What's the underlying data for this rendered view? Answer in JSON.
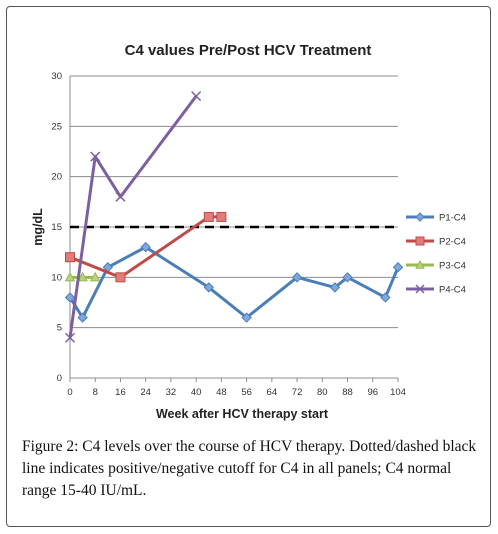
{
  "chart_data": {
    "type": "line",
    "title": "C4 values Pre/Post HCV Treatment",
    "xlabel": "Week after HCV therapy start",
    "ylabel": "mg/dL",
    "xlim": [
      0,
      104
    ],
    "ylim": [
      0,
      30
    ],
    "xticks": [
      0,
      8,
      16,
      24,
      32,
      40,
      48,
      56,
      64,
      72,
      80,
      88,
      96,
      104
    ],
    "yticks": [
      0,
      5,
      10,
      15,
      20,
      25,
      30
    ],
    "grid": true,
    "legend_position": "right",
    "cutoff_line": {
      "y": 15,
      "style": "dashed",
      "color": "#000000"
    },
    "series": [
      {
        "name": "P1-C4",
        "color": "#4a7ebb",
        "marker": "diamond",
        "x": [
          0,
          4,
          12,
          24,
          44,
          56,
          72,
          84,
          88,
          100,
          104
        ],
        "y": [
          8,
          6,
          11,
          13,
          9,
          6,
          10,
          9,
          10,
          8,
          11
        ]
      },
      {
        "name": "P2-C4",
        "color": "#be4b48",
        "marker": "square",
        "x": [
          0,
          16,
          44,
          48
        ],
        "y": [
          12,
          10,
          16,
          16
        ]
      },
      {
        "name": "P3-C4",
        "color": "#98b954",
        "marker": "triangle",
        "x": [
          0,
          4,
          8
        ],
        "y": [
          10,
          10,
          10
        ]
      },
      {
        "name": "P4-C4",
        "color": "#7d60a0",
        "marker": "x",
        "x": [
          0,
          8,
          16,
          40
        ],
        "y": [
          4,
          22,
          18,
          28
        ]
      }
    ]
  },
  "caption": {
    "label": "Figure 2:",
    "text": " C4 levels over the course of HCV therapy. Dotted/dashed black line indicates positive/negative cutoff for C4 in all panels; C4 normal range 15-40 IU/mL."
  }
}
